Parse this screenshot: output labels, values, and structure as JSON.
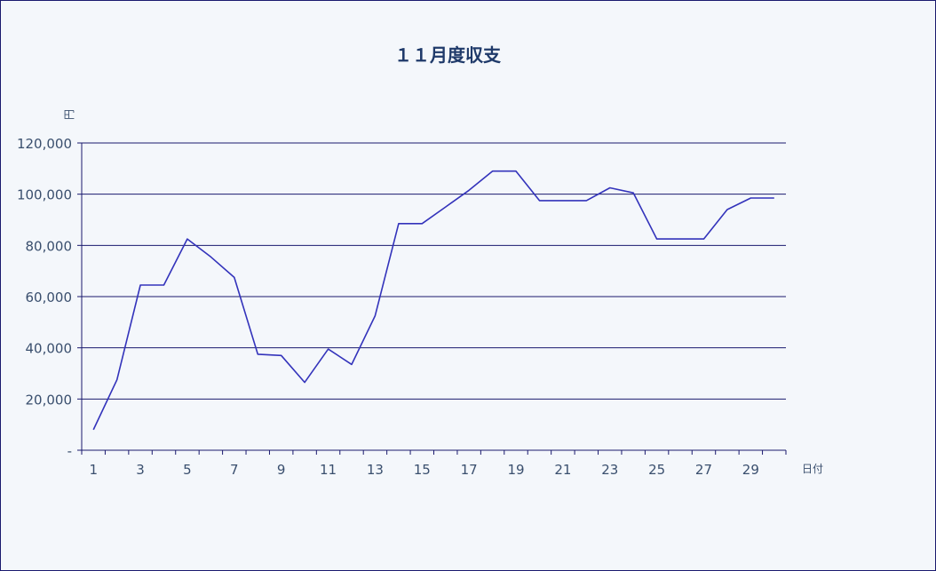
{
  "chart_data": {
    "type": "line",
    "title": "１１月度収支",
    "ylabel": "円",
    "xlabel": "日付",
    "ylim": [
      0,
      120000
    ],
    "y_ticks": [
      0,
      20000,
      40000,
      60000,
      80000,
      100000,
      120000
    ],
    "y_tick_labels": [
      "-",
      "20,000",
      "40,000",
      "60,000",
      "80,000",
      "100,000",
      "120,000"
    ],
    "x_tick_labels": [
      "1",
      "3",
      "5",
      "7",
      "9",
      "11",
      "13",
      "15",
      "17",
      "19",
      "21",
      "23",
      "25",
      "27",
      "29"
    ],
    "grid": true,
    "line_color": "#3333bb",
    "series": [
      {
        "x": [
          1,
          2,
          3,
          4,
          5,
          6,
          7,
          8,
          9,
          10,
          11,
          12,
          13,
          14,
          15,
          16,
          17,
          18,
          19,
          20,
          21,
          22,
          23,
          24,
          25,
          26,
          27,
          28,
          29,
          30
        ],
        "values": [
          8000,
          27500,
          64500,
          64500,
          82500,
          75500,
          67500,
          37500,
          37000,
          26500,
          39500,
          33500,
          52500,
          88500,
          88500,
          95000,
          101500,
          109000,
          109000,
          97500,
          97500,
          97500,
          102500,
          100500,
          82500,
          82500,
          82500,
          94000,
          98500,
          98500
        ]
      }
    ]
  }
}
